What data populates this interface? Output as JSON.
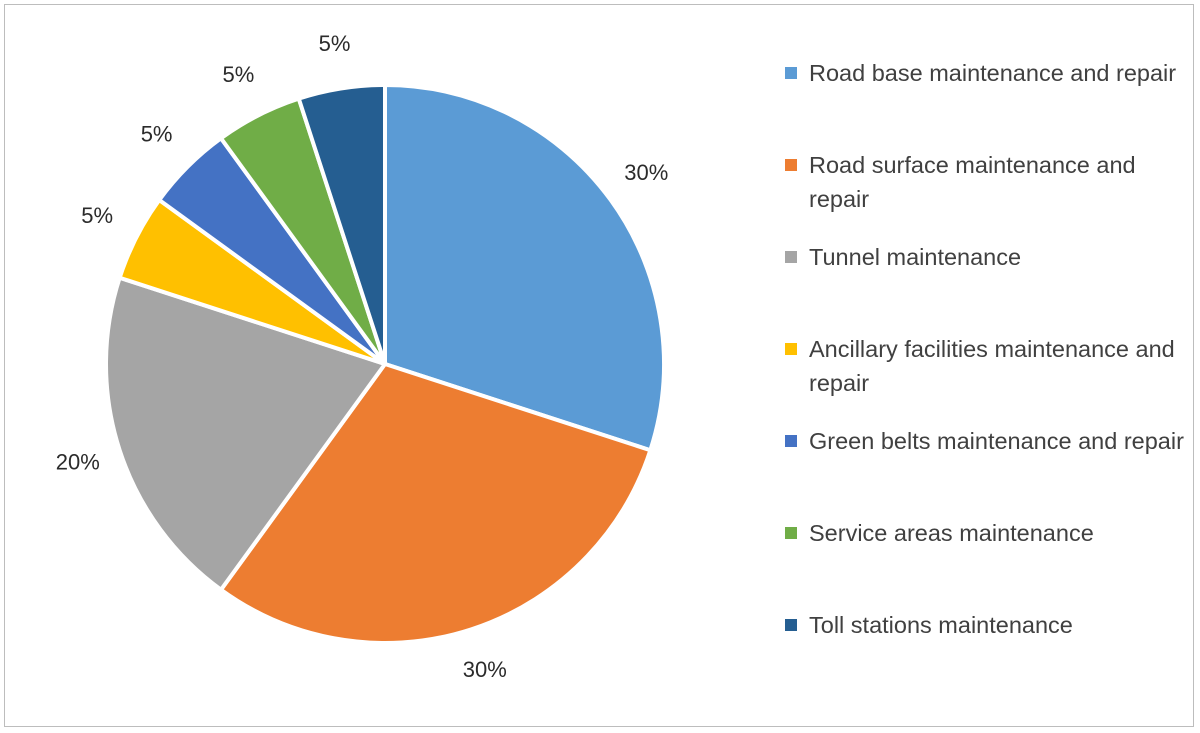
{
  "chart_data": {
    "type": "pie",
    "title": "",
    "slices": [
      {
        "label": "Road base maintenance and repair",
        "value": 30,
        "display": "30%",
        "color": "#5b9bd5"
      },
      {
        "label": "Road surface maintenance and repair",
        "value": 30,
        "display": "30%",
        "color": "#ed7d31"
      },
      {
        "label": "Tunnel maintenance",
        "value": 20,
        "display": "20%",
        "color": "#a5a5a5"
      },
      {
        "label": "Ancillary facilities maintenance and repair",
        "value": 5,
        "display": "5%",
        "color": "#ffc000"
      },
      {
        "label": "Green belts maintenance and repair",
        "value": 5,
        "display": "5%",
        "color": "#4472c4"
      },
      {
        "label": "Service areas maintenance",
        "value": 5,
        "display": "5%",
        "color": "#70ad47"
      },
      {
        "label": "Toll stations maintenance",
        "value": 5,
        "display": "5%",
        "color": "#255e91"
      }
    ],
    "legend_position": "right",
    "start_angle": "top",
    "direction": "clockwise"
  }
}
